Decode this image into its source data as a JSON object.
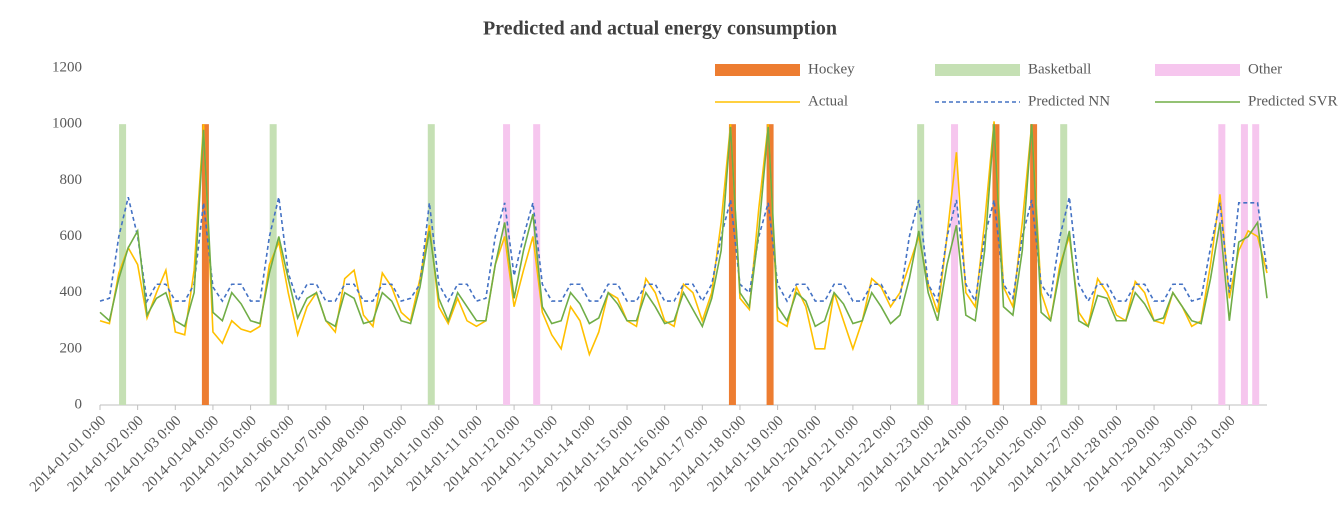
{
  "chart_data": {
    "type": "line",
    "title": "Predicted and actual energy consumption",
    "xlim": [
      0,
      31
    ],
    "xticks": [
      {
        "value": 0,
        "label": "2014-01-01 0:00"
      },
      {
        "value": 1,
        "label": "2014-01-02 0:00"
      },
      {
        "value": 2,
        "label": "2014-01-03 0:00"
      },
      {
        "value": 3,
        "label": "2014-01-04 0:00"
      },
      {
        "value": 4,
        "label": "2014-01-05 0:00"
      },
      {
        "value": 5,
        "label": "2014-01-06 0:00"
      },
      {
        "value": 6,
        "label": "2014-01-07 0:00"
      },
      {
        "value": 7,
        "label": "2014-01-08 0:00"
      },
      {
        "value": 8,
        "label": "2014-01-09 0:00"
      },
      {
        "value": 9,
        "label": "2014-01-10 0:00"
      },
      {
        "value": 10,
        "label": "2014-01-11 0:00"
      },
      {
        "value": 11,
        "label": "2014-01-12 0:00"
      },
      {
        "value": 12,
        "label": "2014-01-13 0:00"
      },
      {
        "value": 13,
        "label": "2014-01-14 0:00"
      },
      {
        "value": 14,
        "label": "2014-01-15 0:00"
      },
      {
        "value": 15,
        "label": "2014-01-16 0:00"
      },
      {
        "value": 16,
        "label": "2014-01-17 0:00"
      },
      {
        "value": 17,
        "label": "2014-01-18 0:00"
      },
      {
        "value": 18,
        "label": "2014-01-19 0:00"
      },
      {
        "value": 19,
        "label": "2014-01-20 0:00"
      },
      {
        "value": 20,
        "label": "2014-01-21 0:00"
      },
      {
        "value": 21,
        "label": "2014-01-22 0:00"
      },
      {
        "value": 22,
        "label": "2014-01-23 0:00"
      },
      {
        "value": 23,
        "label": "2014-01-24 0:00"
      },
      {
        "value": 24,
        "label": "2014-01-25 0:00"
      },
      {
        "value": 25,
        "label": "2014-01-26 0:00"
      },
      {
        "value": 26,
        "label": "2014-01-27 0:00"
      },
      {
        "value": 27,
        "label": "2014-01-28 0:00"
      },
      {
        "value": 28,
        "label": "2014-01-29 0:00"
      },
      {
        "value": 29,
        "label": "2014-01-30 0:00"
      },
      {
        "value": 30,
        "label": "2014-01-31 0:00"
      }
    ],
    "ylim": [
      0,
      1200
    ],
    "yticks": [
      0,
      200,
      400,
      600,
      800,
      1000,
      1200
    ],
    "grid": false,
    "bars": [
      {
        "name": "Hockey",
        "color": "#ED7D31",
        "x": [
          2.8,
          16.8,
          17.8,
          23.8,
          24.8
        ],
        "values": [
          1000,
          1000,
          1000,
          1000,
          1000
        ]
      },
      {
        "name": "Basketball",
        "color": "#C5E0B4",
        "x": [
          0.6,
          4.6,
          8.8,
          21.8,
          25.6
        ],
        "values": [
          1000,
          1000,
          1000,
          1000,
          1000
        ]
      },
      {
        "name": "Other",
        "color": "#F6C6EE",
        "x": [
          10.8,
          11.6,
          22.7,
          29.8,
          30.4,
          30.7
        ],
        "values": [
          1000,
          1000,
          1000,
          1000,
          1000,
          1000
        ]
      }
    ],
    "x": [
      0,
      0.25,
      0.5,
      0.75,
      1,
      1.25,
      1.5,
      1.75,
      2,
      2.25,
      2.5,
      2.75,
      3,
      3.25,
      3.5,
      3.75,
      4,
      4.25,
      4.5,
      4.75,
      5,
      5.25,
      5.5,
      5.75,
      6,
      6.25,
      6.5,
      6.75,
      7,
      7.25,
      7.5,
      7.75,
      8,
      8.25,
      8.5,
      8.75,
      9,
      9.25,
      9.5,
      9.75,
      10,
      10.25,
      10.5,
      10.75,
      11,
      11.25,
      11.5,
      11.75,
      12,
      12.25,
      12.5,
      12.75,
      13,
      13.25,
      13.5,
      13.75,
      14,
      14.25,
      14.5,
      14.75,
      15,
      15.25,
      15.5,
      15.75,
      16,
      16.25,
      16.5,
      16.75,
      17,
      17.25,
      17.5,
      17.75,
      18,
      18.25,
      18.5,
      18.75,
      19,
      19.25,
      19.5,
      19.75,
      20,
      20.25,
      20.5,
      20.75,
      21,
      21.25,
      21.5,
      21.75,
      22,
      22.25,
      22.5,
      22.75,
      23,
      23.25,
      23.5,
      23.75,
      24,
      24.25,
      24.5,
      24.75,
      25,
      25.25,
      25.5,
      25.75,
      26,
      26.25,
      26.5,
      26.75,
      27,
      27.25,
      27.5,
      27.75,
      28,
      28.25,
      28.5,
      28.75,
      29,
      29.25,
      29.5,
      29.75,
      30,
      30.25,
      30.5,
      30.75,
      31
    ],
    "series": [
      {
        "name": "Actual",
        "color": "#FFC000",
        "style": "solid",
        "values": [
          300,
          290,
          470,
          560,
          500,
          310,
          400,
          480,
          260,
          250,
          480,
          1000,
          260,
          220,
          300,
          270,
          260,
          280,
          500,
          580,
          400,
          250,
          350,
          400,
          300,
          260,
          450,
          480,
          320,
          280,
          470,
          420,
          330,
          300,
          450,
          640,
          350,
          290,
          380,
          300,
          280,
          300,
          500,
          600,
          350,
          480,
          600,
          330,
          250,
          200,
          350,
          300,
          180,
          260,
          400,
          380,
          300,
          280,
          450,
          400,
          300,
          280,
          430,
          400,
          300,
          400,
          650,
          1000,
          380,
          340,
          700,
          1000,
          300,
          280,
          420,
          350,
          200,
          200,
          400,
          300,
          200,
          300,
          450,
          420,
          350,
          400,
          500,
          600,
          430,
          330,
          600,
          900,
          400,
          350,
          650,
          1010,
          420,
          350,
          650,
          1000,
          400,
          300,
          500,
          600,
          330,
          280,
          450,
          400,
          320,
          300,
          440,
          400,
          300,
          290,
          400,
          350,
          280,
          300,
          500,
          750,
          380,
          550,
          620,
          600,
          470
        ]
      },
      {
        "name": "Predicted NN",
        "color": "#4472C4",
        "style": "dashed",
        "values": [
          370,
          380,
          600,
          740,
          600,
          370,
          430,
          430,
          370,
          370,
          430,
          720,
          420,
          370,
          430,
          430,
          370,
          370,
          600,
          740,
          470,
          370,
          430,
          430,
          370,
          370,
          430,
          430,
          370,
          370,
          430,
          430,
          370,
          380,
          430,
          720,
          430,
          370,
          430,
          430,
          370,
          380,
          600,
          720,
          460,
          600,
          720,
          430,
          370,
          370,
          430,
          430,
          370,
          370,
          430,
          430,
          370,
          370,
          430,
          430,
          370,
          370,
          430,
          430,
          370,
          430,
          600,
          730,
          430,
          400,
          600,
          720,
          430,
          370,
          430,
          430,
          370,
          370,
          430,
          430,
          370,
          370,
          430,
          430,
          370,
          380,
          600,
          730,
          430,
          370,
          600,
          730,
          430,
          370,
          600,
          730,
          430,
          380,
          600,
          730,
          430,
          380,
          600,
          740,
          430,
          370,
          430,
          430,
          370,
          370,
          430,
          430,
          370,
          370,
          430,
          430,
          370,
          380,
          560,
          720,
          400,
          720,
          720,
          720,
          480
        ]
      },
      {
        "name": "Predicted SVR",
        "color": "#70AD47",
        "style": "solid",
        "values": [
          330,
          300,
          450,
          560,
          620,
          320,
          380,
          400,
          300,
          280,
          400,
          980,
          330,
          300,
          400,
          360,
          300,
          290,
          470,
          600,
          450,
          310,
          380,
          400,
          300,
          280,
          400,
          380,
          290,
          300,
          400,
          370,
          300,
          290,
          420,
          620,
          380,
          300,
          400,
          350,
          300,
          300,
          500,
          650,
          380,
          550,
          680,
          350,
          290,
          300,
          400,
          360,
          290,
          310,
          400,
          360,
          300,
          300,
          400,
          350,
          290,
          300,
          400,
          340,
          280,
          380,
          550,
          990,
          400,
          350,
          620,
          990,
          350,
          300,
          400,
          370,
          280,
          300,
          400,
          360,
          290,
          300,
          400,
          350,
          290,
          320,
          450,
          620,
          400,
          300,
          500,
          640,
          320,
          300,
          550,
          1000,
          350,
          320,
          550,
          1000,
          330,
          300,
          480,
          620,
          300,
          280,
          390,
          380,
          300,
          300,
          400,
          360,
          300,
          310,
          400,
          350,
          300,
          290,
          450,
          650,
          300,
          580,
          600,
          650,
          380
        ]
      }
    ]
  }
}
